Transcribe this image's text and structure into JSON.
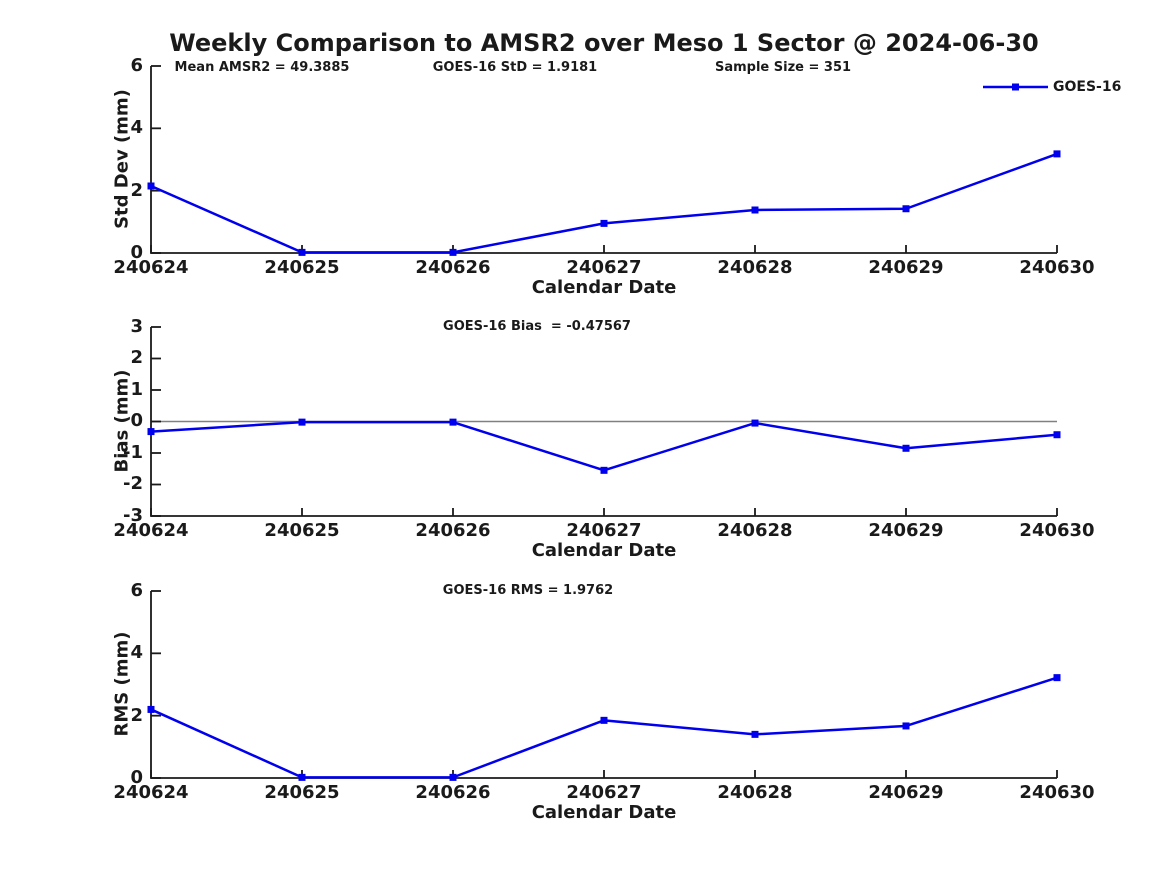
{
  "title": "Weekly Comparison to AMSR2 over Meso 1 Sector @ 2024-06-30",
  "colors": {
    "series": "#0000EE",
    "zero_line": "#808080",
    "axis": "#1a1a1a",
    "text": "#1a1a1a",
    "background": "#ffffff"
  },
  "chart_data": [
    {
      "type": "line",
      "subplot": "std-dev",
      "annotations": [
        "Mean AMSR2 = 49.3885",
        "GOES-16 StD = 1.9181",
        "Sample Size = 351"
      ],
      "xlabel": "Calendar Date",
      "ylabel": "Std Dev (mm)",
      "ylim": [
        0,
        6
      ],
      "yticks": [
        0,
        2,
        4,
        6
      ],
      "y_tick_labels": [
        "6",
        "4",
        "2",
        "0"
      ],
      "x": [
        "240624",
        "240625",
        "240626",
        "240627",
        "240628",
        "240629",
        "240630"
      ],
      "grid": false,
      "legend": {
        "label": "GOES-16",
        "position": "top-right"
      },
      "series": [
        {
          "name": "GOES-16",
          "color": "#0000EE",
          "marker": "square",
          "values": [
            2.15,
            0.02,
            0.02,
            0.95,
            1.38,
            1.42,
            3.18
          ]
        }
      ]
    },
    {
      "type": "line",
      "subplot": "bias",
      "annotations": [
        "GOES-16 Bias  = -0.47567"
      ],
      "xlabel": "Calendar Date",
      "ylabel": "Bias (mm)",
      "ylim": [
        -3,
        3
      ],
      "yticks": [
        -3,
        -2,
        -1,
        0,
        1,
        2,
        3
      ],
      "y_tick_labels": [
        "3",
        "2",
        "1",
        "0",
        "-1",
        "-2",
        "-3"
      ],
      "x": [
        "240624",
        "240625",
        "240626",
        "240627",
        "240628",
        "240629",
        "240630"
      ],
      "grid": false,
      "zero_line": true,
      "series": [
        {
          "name": "GOES-16",
          "color": "#0000EE",
          "marker": "square",
          "values": [
            -0.32,
            -0.02,
            -0.02,
            -1.55,
            -0.05,
            -0.85,
            -0.42
          ]
        }
      ]
    },
    {
      "type": "line",
      "subplot": "rms",
      "annotations": [
        "GOES-16 RMS = 1.9762"
      ],
      "xlabel": "Calendar Date",
      "ylabel": "RMS (mm)",
      "ylim": [
        0,
        6
      ],
      "yticks": [
        0,
        2,
        4,
        6
      ],
      "y_tick_labels": [
        "6",
        "4",
        "2",
        "0"
      ],
      "x": [
        "240624",
        "240625",
        "240626",
        "240627",
        "240628",
        "240629",
        "240630"
      ],
      "grid": false,
      "series": [
        {
          "name": "GOES-16",
          "color": "#0000EE",
          "marker": "square",
          "values": [
            2.2,
            0.02,
            0.02,
            1.85,
            1.4,
            1.67,
            3.22
          ]
        }
      ]
    }
  ]
}
